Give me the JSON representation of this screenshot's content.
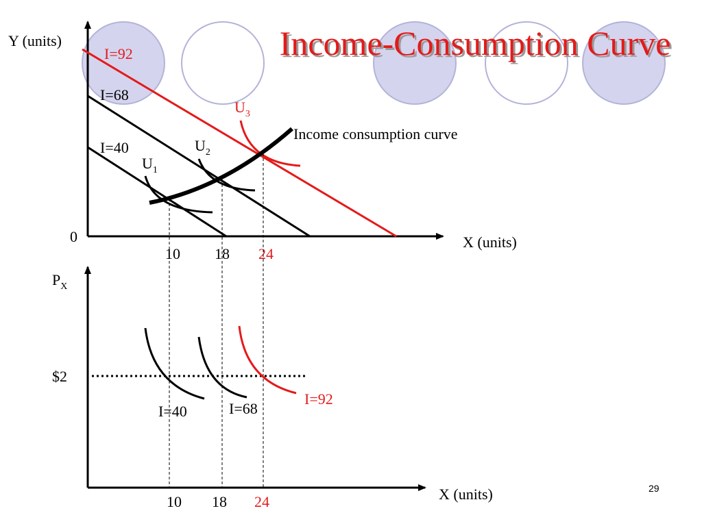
{
  "title": "Income-Consumption Curve",
  "page_number": "29",
  "colors": {
    "red": "#e41a1a",
    "black": "#000000",
    "circle_fill": "#d4d4ee",
    "circle_stroke": "#b3b3d9"
  },
  "top_graph": {
    "y_axis_label": "Y (units)",
    "x_axis_label": "X (units)",
    "origin_label": "0",
    "budget_lines": [
      "I=40",
      "I=68",
      "I=92"
    ],
    "indifference_curves": {
      "u1": {
        "main": "U",
        "sub": "1"
      },
      "u2": {
        "main": "U",
        "sub": "2"
      },
      "u3": {
        "main": "U",
        "sub": "3"
      }
    },
    "icc_label": "Income consumption curve",
    "x_ticks": [
      "10",
      "18",
      "24"
    ]
  },
  "bottom_graph": {
    "y_axis_label": {
      "main": "P",
      "sub": "X"
    },
    "x_axis_label": "X (units)",
    "price_label": "$2",
    "demand_curves": [
      "I=40",
      "I=68",
      "I=92"
    ],
    "x_ticks": [
      "10",
      "18",
      "24"
    ]
  }
}
